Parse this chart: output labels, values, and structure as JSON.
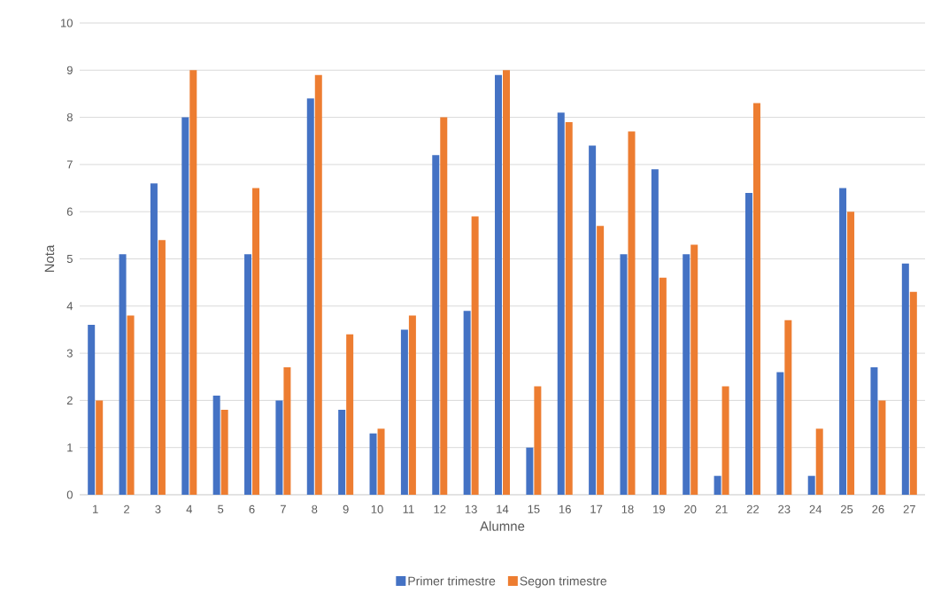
{
  "chart_data": {
    "type": "bar",
    "xlabel": "Alumne",
    "ylabel": "Nota",
    "categories": [
      "1",
      "2",
      "3",
      "4",
      "5",
      "6",
      "7",
      "8",
      "9",
      "10",
      "11",
      "12",
      "13",
      "14",
      "15",
      "16",
      "17",
      "18",
      "19",
      "20",
      "21",
      "22",
      "23",
      "24",
      "25",
      "26",
      "27"
    ],
    "series": [
      {
        "name": "Primer trimestre",
        "color": "#4472c4",
        "values": [
          3.6,
          5.1,
          6.6,
          8.0,
          2.1,
          5.1,
          2.0,
          8.4,
          1.8,
          1.3,
          3.5,
          7.2,
          3.9,
          8.9,
          1.0,
          8.1,
          7.4,
          5.1,
          6.9,
          5.1,
          0.4,
          6.4,
          2.6,
          0.4,
          6.5,
          2.7,
          4.9
        ]
      },
      {
        "name": "Segon trimestre",
        "color": "#ed7d31",
        "values": [
          2.0,
          3.8,
          5.4,
          9.0,
          1.8,
          6.5,
          2.7,
          8.9,
          3.4,
          1.4,
          3.8,
          8.0,
          5.9,
          9.0,
          2.3,
          7.9,
          5.7,
          7.7,
          4.6,
          5.3,
          2.3,
          8.3,
          3.7,
          1.4,
          6.0,
          2.0,
          4.3
        ]
      }
    ],
    "ylim": [
      0,
      10
    ],
    "yticks": [
      0,
      1,
      2,
      3,
      4,
      5,
      6,
      7,
      8,
      9,
      10
    ],
    "grid": "y",
    "legend": "bottom"
  }
}
